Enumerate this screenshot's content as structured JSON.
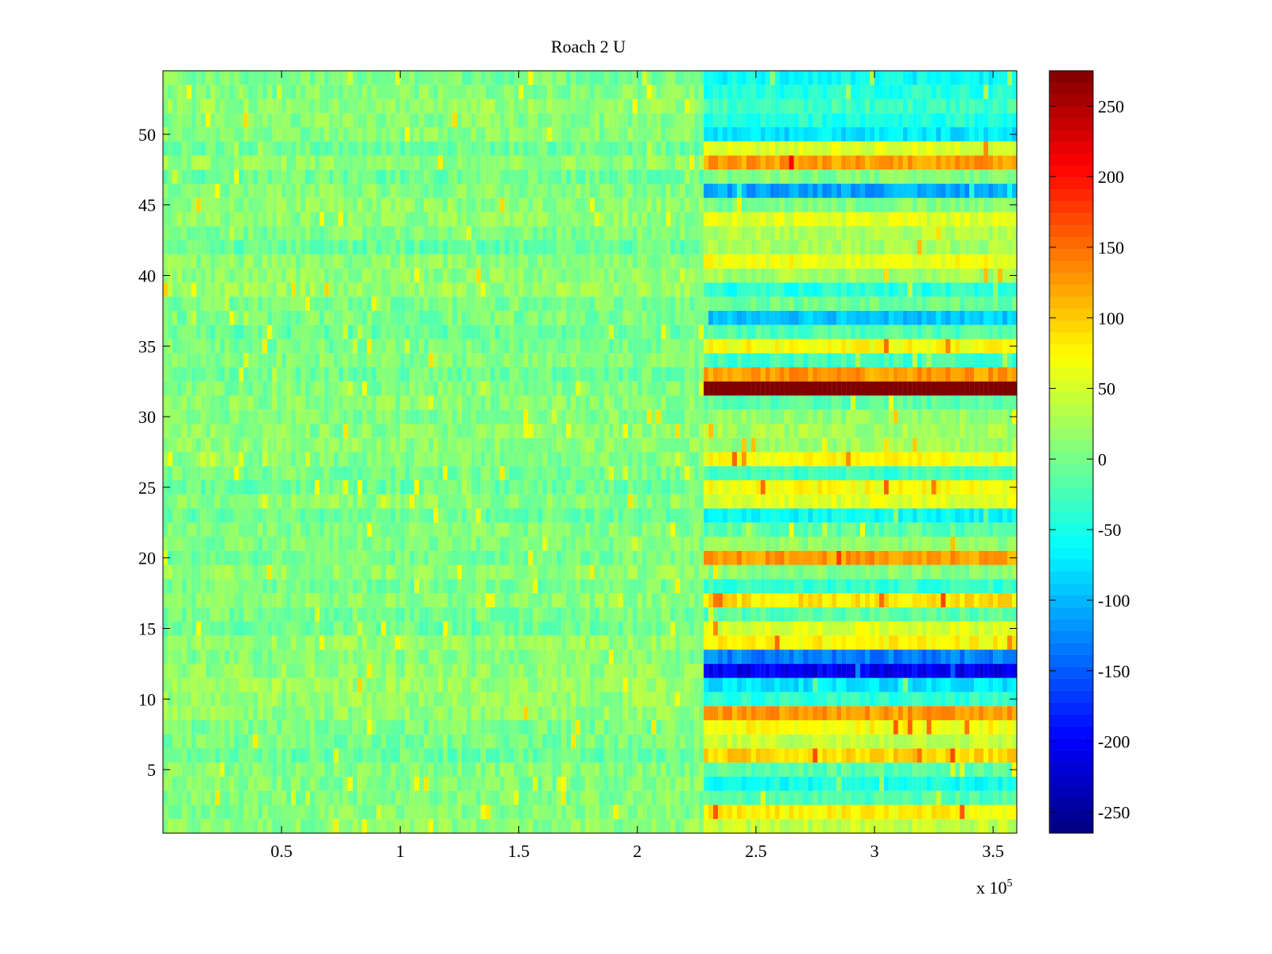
{
  "chart_data": {
    "type": "heatmap",
    "title": "Roach 2 U",
    "xlabel": "",
    "ylabel": "",
    "x_range": [
      0,
      360000
    ],
    "y_range": [
      0.5,
      54.5
    ],
    "x_ticks": [
      0.5,
      1,
      1.5,
      2,
      2.5,
      3,
      3.5
    ],
    "x_tick_labels": [
      "0.5",
      "1",
      "1.5",
      "2",
      "2.5",
      "3",
      "3.5"
    ],
    "x_exponent_label": "x 10",
    "x_exponent_power": "5",
    "y_ticks": [
      5,
      10,
      15,
      20,
      25,
      30,
      35,
      40,
      45,
      50
    ],
    "y_tick_labels": [
      "5",
      "10",
      "15",
      "20",
      "25",
      "30",
      "35",
      "40",
      "45",
      "50"
    ],
    "rows": 54,
    "transition_x": 228000,
    "colorbar": {
      "colormap": "jet",
      "range": [
        -265,
        275
      ],
      "ticks": [
        250,
        200,
        150,
        100,
        50,
        0,
        -50,
        -100,
        -150,
        -200,
        -250
      ],
      "tick_labels": [
        "250",
        "200",
        "150",
        "100",
        "50",
        "0",
        "-50",
        "-100",
        "-150",
        "-200",
        "-250"
      ]
    },
    "baseline_level_before_transition": 5,
    "row_levels_after_transition": {
      "1": 40,
      "2": 75,
      "3": -20,
      "4": -55,
      "5": -15,
      "6": 95,
      "7": 40,
      "8": 70,
      "9": 125,
      "10": -40,
      "11": -75,
      "12": -205,
      "13": -130,
      "14": 75,
      "15": 55,
      "16": -15,
      "17": 85,
      "18": -35,
      "19": 10,
      "20": 125,
      "21": 15,
      "22": -15,
      "23": -60,
      "24": 55,
      "25": 70,
      "26": -30,
      "27": 70,
      "28": 20,
      "29": 25,
      "30": 15,
      "31": -15,
      "32": 275,
      "33": 125,
      "34": -30,
      "35": 70,
      "36": -20,
      "37": -90,
      "38": -5,
      "39": -45,
      "40": 25,
      "41": 65,
      "42": 25,
      "43": 30,
      "44": 55,
      "45": 5,
      "46": -110,
      "47": 5,
      "48": 125,
      "49": 55,
      "50": -75,
      "51": -45,
      "52": -30,
      "53": -45,
      "54": -60
    }
  }
}
